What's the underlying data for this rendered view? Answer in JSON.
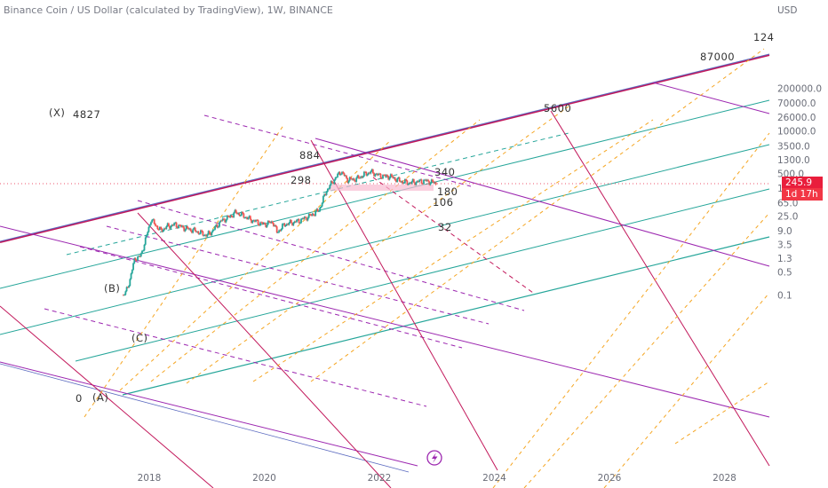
{
  "header": {
    "symbol_title": "Binance Coin / US Dollar (calculated by TradingView), 1W, BINANCE"
  },
  "price_axis": {
    "currency": "USD"
  },
  "last_price": {
    "value": "245.9",
    "countdown": "1d 17h"
  },
  "bolt_icon": "lightning-icon",
  "colors": {
    "channel_pink": "#c2185b",
    "channel_purple": "#9c27b0",
    "channel_green": "#26a69a",
    "fib_orange": "#f5a623",
    "price_label_bg": "#e91e3c",
    "candle_up": "#26a69a",
    "candle_down": "#ef5350"
  },
  "chart_data": {
    "type": "candlestick",
    "title": "Binance Coin / US Dollar (calculated by TradingView), 1W, BINANCE",
    "x_ticks": [
      "2018",
      "2020",
      "2022",
      "2024",
      "2026",
      "2028"
    ],
    "y_scale": "log",
    "y_ticks": [
      "200000.0",
      "70000.0",
      "26000.0",
      "10000.0",
      "3500.0",
      "1300.0",
      "500.0",
      "180.0",
      "65.0",
      "25.0",
      "9.0",
      "3.5",
      "1.3",
      "0.5",
      "0.1"
    ],
    "annotations": [
      "(X)",
      "4827",
      "884",
      "298",
      "340",
      "180",
      "106",
      "32",
      "(B)",
      "(C)",
      "0",
      "(A)",
      "5600",
      "87000",
      "124"
    ],
    "last_price": 245.9,
    "price_path": [
      [
        2017.55,
        0.1
      ],
      [
        2017.62,
        0.15
      ],
      [
        2017.75,
        1.3
      ],
      [
        2017.85,
        1.5
      ],
      [
        2017.95,
        6.0
      ],
      [
        2018.03,
        20
      ],
      [
        2018.1,
        14
      ],
      [
        2018.2,
        9
      ],
      [
        2018.3,
        12
      ],
      [
        2018.45,
        14
      ],
      [
        2018.6,
        11
      ],
      [
        2018.8,
        9
      ],
      [
        2019.0,
        6.5
      ],
      [
        2019.1,
        9
      ],
      [
        2019.25,
        18
      ],
      [
        2019.4,
        24
      ],
      [
        2019.5,
        33
      ],
      [
        2019.6,
        28
      ],
      [
        2019.75,
        20
      ],
      [
        2019.9,
        16
      ],
      [
        2020.0,
        14
      ],
      [
        2020.15,
        17
      ],
      [
        2020.22,
        8
      ],
      [
        2020.35,
        14
      ],
      [
        2020.6,
        18
      ],
      [
        2020.8,
        26
      ],
      [
        2020.95,
        38
      ],
      [
        2021.08,
        150
      ],
      [
        2021.2,
        300
      ],
      [
        2021.33,
        580
      ],
      [
        2021.45,
        320
      ],
      [
        2021.6,
        340
      ],
      [
        2021.75,
        480
      ],
      [
        2021.85,
        560
      ],
      [
        2022.0,
        430
      ],
      [
        2022.2,
        400
      ],
      [
        2022.35,
        300
      ],
      [
        2022.5,
        260
      ],
      [
        2022.65,
        280
      ],
      [
        2022.8,
        300
      ],
      [
        2022.95,
        265
      ],
      [
        2023.0,
        245.9
      ]
    ]
  }
}
